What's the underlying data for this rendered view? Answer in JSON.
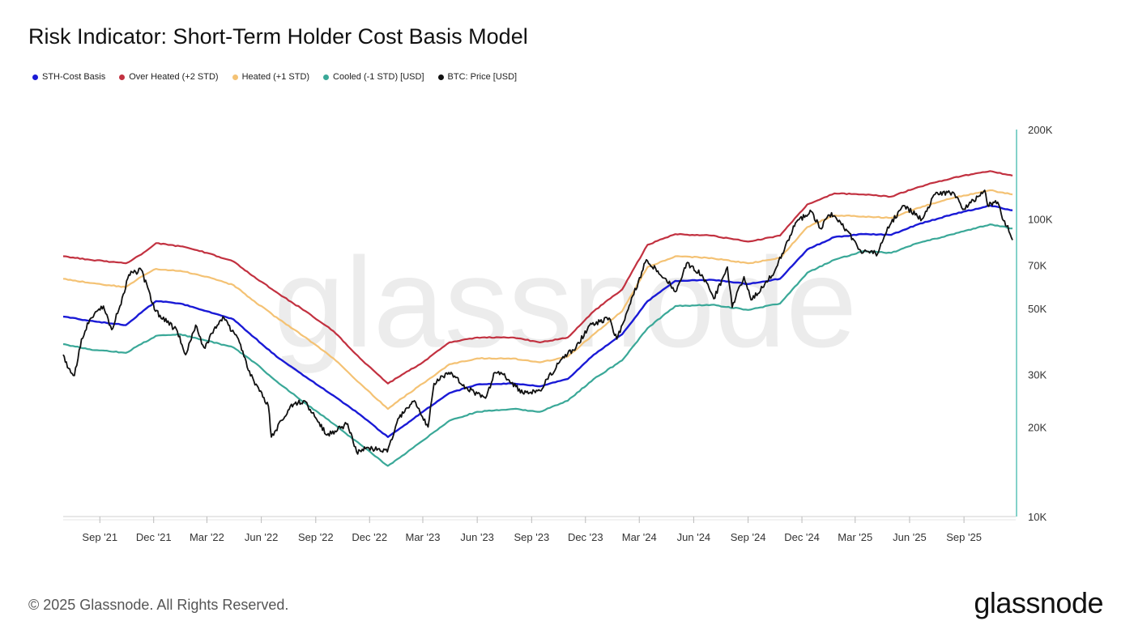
{
  "chart_title": "Risk Indicator: Short-Term Holder Cost Basis Model",
  "footer": {
    "copyright": "© 2025 Glassnode. All Rights Reserved.",
    "brand": "glassnode",
    "watermark": "glassnode"
  },
  "colors": {
    "sth_cost_basis": "#1a1ad6",
    "over_heated": "#c23140",
    "heated": "#f4c274",
    "cooled": "#3aa898",
    "btc_price": "#111111",
    "axis": "#5cc4b8",
    "watermark": "#ececec"
  },
  "chart_data": {
    "type": "line",
    "title": "Risk Indicator: Short-Term Holder Cost Basis Model",
    "y_scale": "log",
    "ylim": [
      10000,
      200000
    ],
    "y_ticks": [
      {
        "value": 200000,
        "label": "200K"
      },
      {
        "value": 100000,
        "label": "100K"
      },
      {
        "value": 70000,
        "label": "70K"
      },
      {
        "value": 50000,
        "label": "50K"
      },
      {
        "value": 30000,
        "label": "30K"
      },
      {
        "value": 20000,
        "label": "20K"
      },
      {
        "value": 10000,
        "label": "10K"
      }
    ],
    "xlim": [
      "2021-07-01",
      "2025-11-22"
    ],
    "x_ticks": [
      {
        "date": "2021-09-01",
        "label": "Sep '21"
      },
      {
        "date": "2021-12-01",
        "label": "Dec '21"
      },
      {
        "date": "2022-03-01",
        "label": "Mar '22"
      },
      {
        "date": "2022-06-01",
        "label": "Jun '22"
      },
      {
        "date": "2022-09-01",
        "label": "Sep '22"
      },
      {
        "date": "2022-12-01",
        "label": "Dec '22"
      },
      {
        "date": "2023-03-01",
        "label": "Mar '23"
      },
      {
        "date": "2023-06-01",
        "label": "Jun '23"
      },
      {
        "date": "2023-09-01",
        "label": "Sep '23"
      },
      {
        "date": "2023-12-01",
        "label": "Dec '23"
      },
      {
        "date": "2024-03-01",
        "label": "Mar '24"
      },
      {
        "date": "2024-06-01",
        "label": "Jun '24"
      },
      {
        "date": "2024-09-01",
        "label": "Sep '24"
      },
      {
        "date": "2024-12-01",
        "label": "Dec '24"
      },
      {
        "date": "2025-03-01",
        "label": "Mar '25"
      },
      {
        "date": "2025-06-01",
        "label": "Jun '25"
      },
      {
        "date": "2025-09-01",
        "label": "Sep '25"
      }
    ],
    "grid": false,
    "legend_position": "top-left",
    "series": [
      {
        "key": "over_heated",
        "name": "Over Heated (+2 STD)",
        "points": [
          [
            "2021-07-01",
            75000
          ],
          [
            "2021-08-15",
            73000
          ],
          [
            "2021-10-15",
            71000
          ],
          [
            "2021-11-10",
            76000
          ],
          [
            "2021-12-05",
            83000
          ],
          [
            "2022-01-15",
            81000
          ],
          [
            "2022-03-01",
            77000
          ],
          [
            "2022-04-15",
            72000
          ],
          [
            "2022-05-20",
            64000
          ],
          [
            "2022-07-01",
            56000
          ],
          [
            "2022-08-15",
            49000
          ],
          [
            "2022-10-01",
            42000
          ],
          [
            "2022-11-15",
            34000
          ],
          [
            "2023-01-01",
            28000
          ],
          [
            "2023-01-25",
            30000
          ],
          [
            "2023-03-01",
            33000
          ],
          [
            "2023-04-15",
            38500
          ],
          [
            "2023-06-01",
            40000
          ],
          [
            "2023-08-01",
            40000
          ],
          [
            "2023-09-15",
            38500
          ],
          [
            "2023-11-01",
            40000
          ],
          [
            "2023-12-15",
            49000
          ],
          [
            "2024-02-01",
            58000
          ],
          [
            "2024-03-15",
            82000
          ],
          [
            "2024-05-01",
            89000
          ],
          [
            "2024-07-01",
            88000
          ],
          [
            "2024-09-01",
            84000
          ],
          [
            "2024-10-25",
            88000
          ],
          [
            "2024-12-10",
            112000
          ],
          [
            "2025-01-25",
            122000
          ],
          [
            "2025-03-15",
            121000
          ],
          [
            "2025-05-01",
            119000
          ],
          [
            "2025-06-15",
            128000
          ],
          [
            "2025-08-15",
            138000
          ],
          [
            "2025-10-15",
            145000
          ],
          [
            "2025-11-22",
            140000
          ]
        ]
      },
      {
        "key": "heated",
        "name": "Heated (+1 STD)",
        "points": [
          [
            "2021-07-01",
            63000
          ],
          [
            "2021-08-15",
            61000
          ],
          [
            "2021-10-15",
            59000
          ],
          [
            "2021-11-10",
            64000
          ],
          [
            "2021-12-05",
            68000
          ],
          [
            "2022-01-15",
            67000
          ],
          [
            "2022-03-01",
            64000
          ],
          [
            "2022-04-15",
            60000
          ],
          [
            "2022-05-20",
            53000
          ],
          [
            "2022-07-01",
            46000
          ],
          [
            "2022-08-15",
            40000
          ],
          [
            "2022-10-01",
            34000
          ],
          [
            "2022-11-15",
            28000
          ],
          [
            "2023-01-01",
            23000
          ],
          [
            "2023-01-25",
            25000
          ],
          [
            "2023-03-01",
            28000
          ],
          [
            "2023-04-15",
            32500
          ],
          [
            "2023-06-01",
            34000
          ],
          [
            "2023-08-01",
            34000
          ],
          [
            "2023-09-15",
            33000
          ],
          [
            "2023-11-01",
            34500
          ],
          [
            "2023-12-15",
            41000
          ],
          [
            "2024-02-01",
            49000
          ],
          [
            "2024-03-15",
            69000
          ],
          [
            "2024-05-01",
            75000
          ],
          [
            "2024-07-01",
            74000
          ],
          [
            "2024-09-01",
            71000
          ],
          [
            "2024-10-25",
            74000
          ],
          [
            "2024-12-10",
            94000
          ],
          [
            "2025-01-25",
            103000
          ],
          [
            "2025-03-15",
            102000
          ],
          [
            "2025-05-01",
            101000
          ],
          [
            "2025-06-15",
            109000
          ],
          [
            "2025-08-15",
            118000
          ],
          [
            "2025-10-15",
            125000
          ],
          [
            "2025-11-22",
            121000
          ]
        ]
      },
      {
        "key": "sth_cost_basis",
        "name": "STH-Cost Basis",
        "points": [
          [
            "2021-07-01",
            47000
          ],
          [
            "2021-08-15",
            45500
          ],
          [
            "2021-10-15",
            44000
          ],
          [
            "2021-11-10",
            48500
          ],
          [
            "2021-12-05",
            53000
          ],
          [
            "2022-01-15",
            52000
          ],
          [
            "2022-03-01",
            49000
          ],
          [
            "2022-04-15",
            46000
          ],
          [
            "2022-05-20",
            40000
          ],
          [
            "2022-07-01",
            34000
          ],
          [
            "2022-08-15",
            29500
          ],
          [
            "2022-10-01",
            25500
          ],
          [
            "2022-11-15",
            22000
          ],
          [
            "2023-01-01",
            18500
          ],
          [
            "2023-01-25",
            20000
          ],
          [
            "2023-03-01",
            22500
          ],
          [
            "2023-04-15",
            26000
          ],
          [
            "2023-06-01",
            27800
          ],
          [
            "2023-08-01",
            28000
          ],
          [
            "2023-09-15",
            27400
          ],
          [
            "2023-11-01",
            29000
          ],
          [
            "2023-12-15",
            35000
          ],
          [
            "2024-02-01",
            41000
          ],
          [
            "2024-03-15",
            53000
          ],
          [
            "2024-05-01",
            62000
          ],
          [
            "2024-07-01",
            62500
          ],
          [
            "2024-09-01",
            60500
          ],
          [
            "2024-10-25",
            63000
          ],
          [
            "2024-12-10",
            79000
          ],
          [
            "2025-01-25",
            87000
          ],
          [
            "2025-03-15",
            89000
          ],
          [
            "2025-05-01",
            88500
          ],
          [
            "2025-06-15",
            96000
          ],
          [
            "2025-08-15",
            104000
          ],
          [
            "2025-10-15",
            111000
          ],
          [
            "2025-11-22",
            107000
          ]
        ]
      },
      {
        "key": "cooled",
        "name": "Cooled (-1 STD) [USD]",
        "points": [
          [
            "2021-07-01",
            38000
          ],
          [
            "2021-08-15",
            36500
          ],
          [
            "2021-10-15",
            35500
          ],
          [
            "2021-11-10",
            38000
          ],
          [
            "2021-12-05",
            40500
          ],
          [
            "2022-01-15",
            41000
          ],
          [
            "2022-03-01",
            39000
          ],
          [
            "2022-04-15",
            37000
          ],
          [
            "2022-05-20",
            33000
          ],
          [
            "2022-07-01",
            28000
          ],
          [
            "2022-08-15",
            24000
          ],
          [
            "2022-10-01",
            20500
          ],
          [
            "2022-11-15",
            17500
          ],
          [
            "2023-01-01",
            14800
          ],
          [
            "2023-01-25",
            16000
          ],
          [
            "2023-03-01",
            18000
          ],
          [
            "2023-04-15",
            21000
          ],
          [
            "2023-06-01",
            22500
          ],
          [
            "2023-08-01",
            23000
          ],
          [
            "2023-09-15",
            22500
          ],
          [
            "2023-11-01",
            24500
          ],
          [
            "2023-12-15",
            29000
          ],
          [
            "2024-02-01",
            33500
          ],
          [
            "2024-03-15",
            43000
          ],
          [
            "2024-05-01",
            51000
          ],
          [
            "2024-07-01",
            51500
          ],
          [
            "2024-09-01",
            49500
          ],
          [
            "2024-10-25",
            52000
          ],
          [
            "2024-12-10",
            66000
          ],
          [
            "2025-01-25",
            73000
          ],
          [
            "2025-03-15",
            78000
          ],
          [
            "2025-05-01",
            77000
          ],
          [
            "2025-06-15",
            83000
          ],
          [
            "2025-08-15",
            89000
          ],
          [
            "2025-10-15",
            96000
          ],
          [
            "2025-11-22",
            93000
          ]
        ]
      },
      {
        "key": "btc_price",
        "name": "BTC: Price [USD]",
        "points": [
          [
            "2021-07-01",
            35000
          ],
          [
            "2021-07-10",
            31500
          ],
          [
            "2021-07-20",
            29800
          ],
          [
            "2021-08-01",
            39500
          ],
          [
            "2021-08-15",
            46000
          ],
          [
            "2021-09-07",
            51000
          ],
          [
            "2021-09-21",
            42500
          ],
          [
            "2021-10-05",
            51000
          ],
          [
            "2021-10-20",
            65000
          ],
          [
            "2021-11-10",
            67500
          ],
          [
            "2021-12-04",
            49000
          ],
          [
            "2022-01-10",
            42000
          ],
          [
            "2022-01-24",
            35000
          ],
          [
            "2022-02-10",
            44000
          ],
          [
            "2022-02-24",
            37000
          ],
          [
            "2022-03-28",
            47000
          ],
          [
            "2022-04-25",
            38500
          ],
          [
            "2022-05-10",
            31000
          ],
          [
            "2022-06-13",
            23500
          ],
          [
            "2022-06-18",
            18500
          ],
          [
            "2022-07-20",
            23500
          ],
          [
            "2022-08-13",
            24500
          ],
          [
            "2022-09-20",
            18800
          ],
          [
            "2022-10-25",
            20500
          ],
          [
            "2022-11-09",
            16500
          ],
          [
            "2022-11-30",
            17000
          ],
          [
            "2022-12-31",
            16500
          ],
          [
            "2023-01-20",
            21500
          ],
          [
            "2023-02-15",
            24500
          ],
          [
            "2023-03-10",
            20000
          ],
          [
            "2023-03-20",
            28000
          ],
          [
            "2023-04-14",
            30500
          ],
          [
            "2023-05-15",
            27000
          ],
          [
            "2023-06-15",
            25000
          ],
          [
            "2023-07-01",
            30500
          ],
          [
            "2023-07-15",
            30000
          ],
          [
            "2023-08-17",
            26000
          ],
          [
            "2023-09-15",
            26500
          ],
          [
            "2023-10-24",
            34500
          ],
          [
            "2023-11-15",
            37000
          ],
          [
            "2023-12-08",
            44000
          ],
          [
            "2024-01-10",
            46500
          ],
          [
            "2024-01-23",
            39500
          ],
          [
            "2024-02-15",
            52000
          ],
          [
            "2024-03-13",
            73000
          ],
          [
            "2024-04-15",
            63000
          ],
          [
            "2024-05-01",
            57000
          ],
          [
            "2024-05-20",
            71000
          ],
          [
            "2024-06-15",
            65000
          ],
          [
            "2024-07-05",
            54000
          ],
          [
            "2024-07-28",
            69000
          ],
          [
            "2024-08-05",
            50500
          ],
          [
            "2024-08-25",
            64000
          ],
          [
            "2024-09-06",
            53500
          ],
          [
            "2024-10-15",
            66000
          ],
          [
            "2024-11-11",
            88000
          ],
          [
            "2024-11-22",
            98000
          ],
          [
            "2024-12-17",
            106000
          ],
          [
            "2025-01-01",
            93000
          ],
          [
            "2025-01-20",
            105000
          ],
          [
            "2025-02-25",
            86000
          ],
          [
            "2025-03-10",
            78500
          ],
          [
            "2025-04-08",
            76500
          ],
          [
            "2025-04-25",
            94000
          ],
          [
            "2025-05-22",
            111000
          ],
          [
            "2025-06-22",
            100000
          ],
          [
            "2025-07-14",
            121000
          ],
          [
            "2025-08-14",
            123000
          ],
          [
            "2025-09-01",
            108000
          ],
          [
            "2025-10-06",
            125000
          ],
          [
            "2025-10-11",
            111000
          ],
          [
            "2025-10-28",
            114000
          ],
          [
            "2025-11-05",
            100000
          ],
          [
            "2025-11-14",
            95000
          ],
          [
            "2025-11-22",
            85000
          ]
        ]
      }
    ]
  }
}
